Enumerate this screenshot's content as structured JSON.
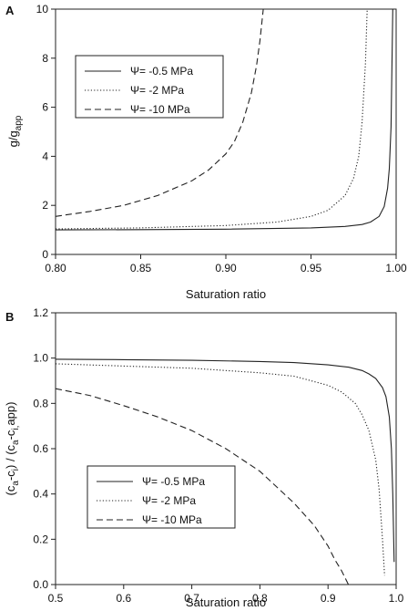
{
  "chart_data": [
    {
      "panel_label": "A",
      "type": "line",
      "xlabel": "Saturation ratio",
      "ylabel_main": "g/g",
      "ylabel_sub": "app",
      "xlim": [
        0.8,
        1.0
      ],
      "ylim": [
        0,
        10
      ],
      "xticks": [
        "0.80",
        "0.85",
        "0.90",
        "0.95",
        "1.00"
      ],
      "yticks": [
        "0",
        "2",
        "4",
        "6",
        "8",
        "10"
      ],
      "legend_position": "upper-left",
      "series": [
        {
          "name": "Ψ= -0.5 MPa",
          "style": "solid",
          "x": [
            0.8,
            0.85,
            0.9,
            0.95,
            0.97,
            0.98,
            0.985,
            0.99,
            0.993,
            0.995,
            0.996,
            0.997,
            0.998
          ],
          "y": [
            1.0,
            1.01,
            1.03,
            1.08,
            1.14,
            1.22,
            1.32,
            1.55,
            1.95,
            2.7,
            3.5,
            5.2,
            10.0
          ]
        },
        {
          "name": "Ψ= -2 MPa",
          "style": "dotted",
          "x": [
            0.8,
            0.85,
            0.9,
            0.93,
            0.95,
            0.96,
            0.97,
            0.975,
            0.978,
            0.98,
            0.982,
            0.983
          ],
          "y": [
            1.04,
            1.08,
            1.18,
            1.32,
            1.55,
            1.8,
            2.4,
            3.1,
            4.0,
            5.4,
            7.8,
            10.0
          ]
        },
        {
          "name": "Ψ= -10 MPa",
          "style": "dashed",
          "x": [
            0.8,
            0.82,
            0.84,
            0.86,
            0.88,
            0.89,
            0.9,
            0.905,
            0.91,
            0.915,
            0.918,
            0.92,
            0.922
          ],
          "y": [
            1.55,
            1.75,
            2.0,
            2.4,
            3.0,
            3.45,
            4.1,
            4.6,
            5.4,
            6.6,
            7.7,
            8.7,
            10.0
          ]
        }
      ]
    },
    {
      "panel_label": "B",
      "type": "line",
      "xlabel": "Saturation ratio",
      "ylabel_main": "(c",
      "ylabel_parts": [
        "(c",
        "a",
        "-c",
        "i",
        ") / (c",
        "a",
        "-c",
        "i,",
        "app)"
      ],
      "xlim": [
        0.5,
        1.0
      ],
      "ylim": [
        0,
        1.2
      ],
      "xticks": [
        "0.5",
        "0.6",
        "0.7",
        "0.8",
        "0.9",
        "1.0"
      ],
      "yticks": [
        "0.0",
        "0.2",
        "0.4",
        "0.6",
        "0.8",
        "1.0",
        "1.2"
      ],
      "legend_position": "lower-left",
      "series": [
        {
          "name": "Ψ= -0.5 MPa",
          "style": "solid",
          "x": [
            0.5,
            0.6,
            0.7,
            0.8,
            0.85,
            0.9,
            0.93,
            0.95,
            0.96,
            0.97,
            0.98,
            0.985,
            0.99,
            0.993,
            0.995,
            0.997
          ],
          "y": [
            0.995,
            0.993,
            0.99,
            0.985,
            0.98,
            0.97,
            0.96,
            0.945,
            0.93,
            0.91,
            0.87,
            0.83,
            0.74,
            0.6,
            0.4,
            0.1
          ]
        },
        {
          "name": "Ψ= -2 MPa",
          "style": "dotted",
          "x": [
            0.5,
            0.6,
            0.7,
            0.8,
            0.85,
            0.9,
            0.92,
            0.94,
            0.95,
            0.96,
            0.97,
            0.975,
            0.98,
            0.983
          ],
          "y": [
            0.975,
            0.965,
            0.955,
            0.935,
            0.92,
            0.88,
            0.85,
            0.8,
            0.75,
            0.68,
            0.55,
            0.42,
            0.2,
            0.04
          ]
        },
        {
          "name": "Ψ= -10 MPa",
          "style": "dashed",
          "x": [
            0.5,
            0.55,
            0.6,
            0.65,
            0.7,
            0.75,
            0.8,
            0.85,
            0.88,
            0.9,
            0.91,
            0.92,
            0.93
          ],
          "y": [
            0.865,
            0.835,
            0.79,
            0.74,
            0.68,
            0.6,
            0.5,
            0.36,
            0.26,
            0.17,
            0.11,
            0.06,
            0.0
          ]
        }
      ]
    }
  ]
}
